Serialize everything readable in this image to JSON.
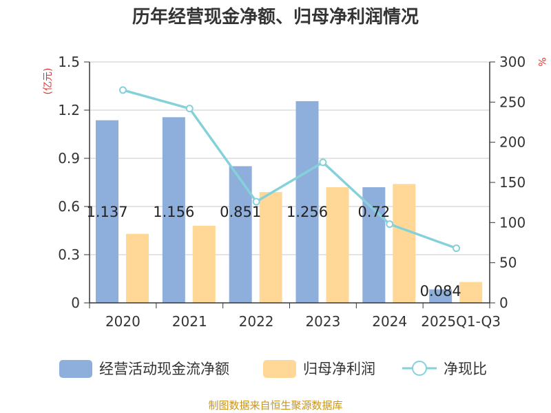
{
  "chart_data": {
    "type": "bar",
    "title": "历年经营现金净额、归母净利润情况",
    "categories": [
      "2020",
      "2021",
      "2022",
      "2023",
      "2024",
      "2025Q1-Q3"
    ],
    "y_left": {
      "unit": "(亿元)",
      "ylim": [
        0,
        1.5
      ],
      "ticks": [
        "0",
        "0.3",
        "0.6",
        "0.9",
        "1.2",
        "1.5"
      ]
    },
    "y_right": {
      "unit": "%",
      "ylim": [
        0,
        300
      ],
      "ticks": [
        "0",
        "50",
        "100",
        "150",
        "200",
        "250",
        "300"
      ]
    },
    "grid": true,
    "legend_position": "bottom",
    "series": [
      {
        "name": "经营活动现金流净额",
        "type": "bar",
        "axis": "left",
        "color": "#8eaedc",
        "values": [
          1.137,
          1.156,
          0.851,
          1.256,
          0.72,
          0.084
        ],
        "labels": [
          "1.137",
          "1.156",
          "0.851",
          "1.256",
          "0.72",
          "0.084"
        ]
      },
      {
        "name": "归母净利润",
        "type": "bar",
        "axis": "left",
        "color": "#ffd797",
        "values": [
          0.43,
          0.48,
          0.69,
          0.72,
          0.74,
          0.13
        ]
      },
      {
        "name": "净现比",
        "type": "line",
        "axis": "right",
        "color": "#85d1d9",
        "values": [
          265,
          242,
          126,
          175,
          98,
          68
        ]
      }
    ],
    "source": "制图数据来自恒生聚源数据库"
  }
}
